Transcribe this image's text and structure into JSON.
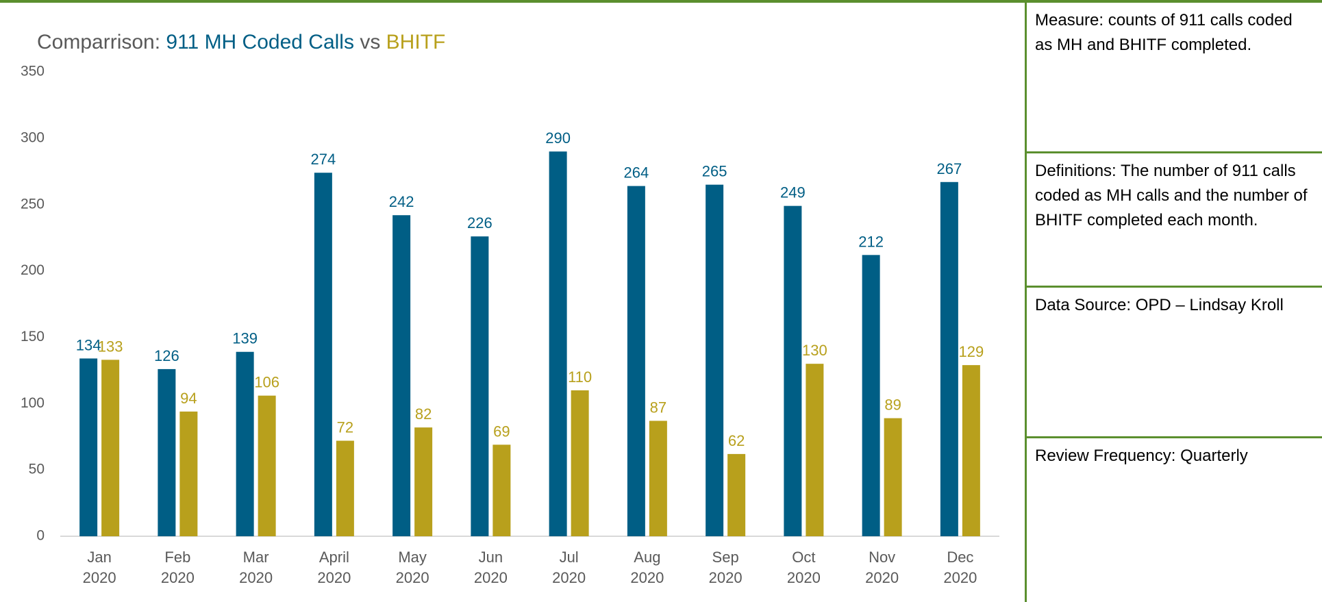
{
  "chart_data": {
    "type": "bar",
    "title": "Comparrison: 911 MH Coded Calls vs BHITF",
    "categories": [
      "Jan 2020",
      "Feb 2020",
      "Mar 2020",
      "April 2020",
      "May 2020",
      "Jun 2020",
      "Jul 2020",
      "Aug 2020",
      "Sep 2020",
      "Oct 2020",
      "Nov 2020",
      "Dec 2020"
    ],
    "series": [
      {
        "name": "911 MH Coded Calls",
        "color": "#005e85",
        "values": [
          134,
          126,
          139,
          274,
          242,
          226,
          290,
          264,
          265,
          249,
          212,
          267
        ]
      },
      {
        "name": "BHITF",
        "color": "#b8a01c",
        "values": [
          133,
          94,
          106,
          72,
          82,
          69,
          110,
          87,
          62,
          130,
          89,
          129
        ]
      }
    ],
    "ylim": [
      0,
      350
    ],
    "yticks": [
      0,
      50,
      100,
      150,
      200,
      250,
      300,
      350
    ],
    "grid": false
  },
  "panel": [
    "Measure: counts of 911 calls coded as MH and BHITF completed.",
    "Definitions: The number of 911 calls coded as MH calls and the number of BHITF completed each month.",
    "Data Source: OPD – Lindsay Kroll",
    "Review Frequency: Quarterly"
  ]
}
